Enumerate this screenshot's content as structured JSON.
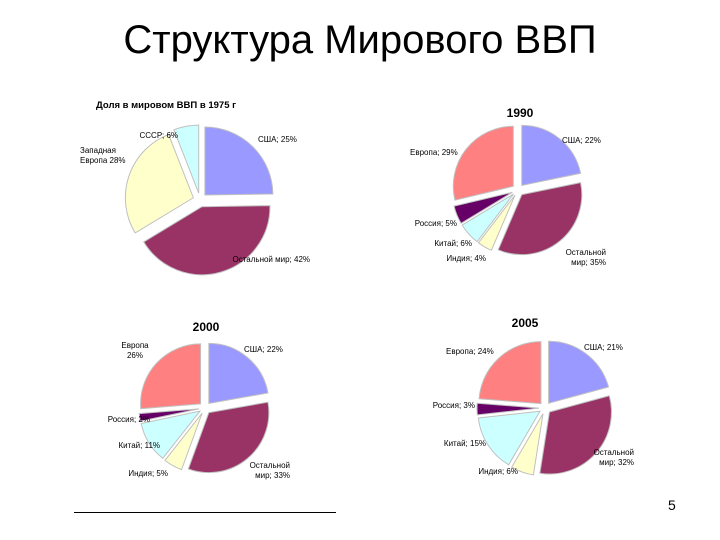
{
  "slide": {
    "title": "Структура Мирового ВВП",
    "page_number": "5"
  },
  "chart_data": [
    {
      "type": "pie",
      "title": "Доля в мировом ВВП в 1975 г",
      "slices": [
        {
          "label": "США",
          "value": 25,
          "text": "США; 25%",
          "color": "#9999ff"
        },
        {
          "label": "Остальной мир",
          "value": 42,
          "text": "Остальной мир; 42%",
          "color": "#993366"
        },
        {
          "label": "Западная Европа",
          "value": 28,
          "text": "Западная Европа 28%",
          "color": "#ffffcc"
        },
        {
          "label": "СССР",
          "value": 6,
          "text": "СССР; 6%",
          "color": "#ccffff"
        }
      ]
    },
    {
      "type": "pie",
      "title": "1990",
      "slices": [
        {
          "label": "США",
          "value": 22,
          "text": "США; 22%",
          "color": "#9999ff"
        },
        {
          "label": "Остальной мир",
          "value": 35,
          "text": "Остальной мир; 35%",
          "color": "#993366"
        },
        {
          "label": "Индия",
          "value": 4,
          "text": "Индия; 4%",
          "color": "#ffffcc"
        },
        {
          "label": "Китай",
          "value": 6,
          "text": "Китай; 6%",
          "color": "#ccffff"
        },
        {
          "label": "Россия",
          "value": 5,
          "text": "Россия; 5%",
          "color": "#660066"
        },
        {
          "label": "Европа",
          "value": 29,
          "text": "Европа; 29%",
          "color": "#ff8080"
        }
      ]
    },
    {
      "type": "pie",
      "title": "2000",
      "slices": [
        {
          "label": "США",
          "value": 22,
          "text": "США; 22%",
          "color": "#9999ff"
        },
        {
          "label": "Остальной мир",
          "value": 33,
          "text": "Остальной мир; 33%",
          "color": "#993366"
        },
        {
          "label": "Индия",
          "value": 5,
          "text": "Индия; 5%",
          "color": "#ffffcc"
        },
        {
          "label": "Китай",
          "value": 11,
          "text": "Китай; 11%",
          "color": "#ccffff"
        },
        {
          "label": "Россия",
          "value": 2,
          "text": "Россия; 2%",
          "color": "#660066"
        },
        {
          "label": "Европа",
          "value": 26,
          "text": "Европа 26%",
          "color": "#ff8080"
        }
      ]
    },
    {
      "type": "pie",
      "title": "2005",
      "slices": [
        {
          "label": "США",
          "value": 21,
          "text": "США; 21%",
          "color": "#9999ff"
        },
        {
          "label": "Остальной мир",
          "value": 32,
          "text": "Остальной мир; 32%",
          "color": "#993366"
        },
        {
          "label": "Индия",
          "value": 6,
          "text": "Индия; 6%",
          "color": "#ffffcc"
        },
        {
          "label": "Китай",
          "value": 15,
          "text": "Китай; 15%",
          "color": "#ccffff"
        },
        {
          "label": "Россия",
          "value": 3,
          "text": "Россия; 3%",
          "color": "#660066"
        },
        {
          "label": "Европа",
          "value": 24,
          "text": "Европа; 24%",
          "color": "#ff8080"
        }
      ]
    }
  ]
}
